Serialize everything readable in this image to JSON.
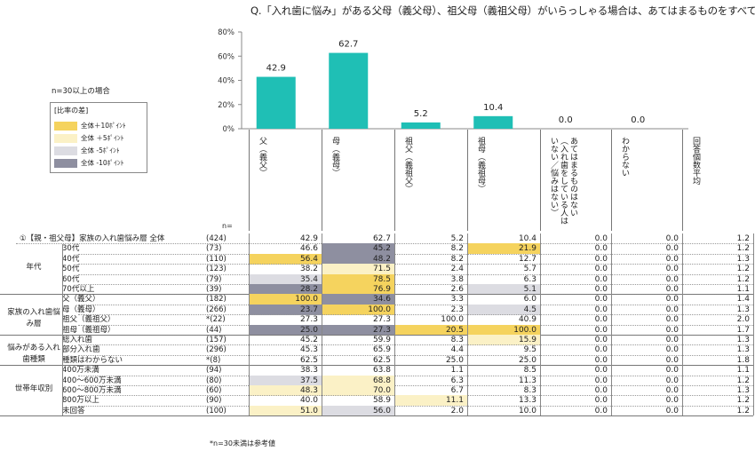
{
  "title": "Q.「入れ歯に悩み」がある父母（義父母）、祖父母（義祖父母）がいらっしゃる場合は、あてはまるものをすべてお",
  "note_top": "n=30以上の場合",
  "legend": {
    "title": "[比率の差]",
    "items": [
      {
        "label": "全体＋10ﾎﾟｲﾝﾄ",
        "color": "#F5D35E"
      },
      {
        "label": "全体 ＋5ﾎﾟｲﾝﾄ",
        "color": "#FBF1C6"
      },
      {
        "label": "全体 -5ﾎﾟｲﾝﾄ",
        "color": "#DCDCE2"
      },
      {
        "label": "全体 -10ﾎﾟｲﾝﾄ",
        "color": "#8E8FA0"
      }
    ]
  },
  "chart_data": {
    "type": "bar",
    "categories": [
      "父（義父）",
      "母（義母）",
      "祖父（義祖父）",
      "祖母（義祖母）",
      "あてはまるものはない（入れ歯をしている人はいない／悩みはない）",
      "わからない"
    ],
    "values": [
      42.9,
      62.7,
      5.2,
      10.4,
      0.0,
      0.0
    ],
    "value_labels": [
      "42.9",
      "62.7",
      "5.2",
      "10.4",
      "0.0",
      "0.0"
    ],
    "yticks": [
      "80%",
      "60%",
      "40%",
      "20%",
      "0%"
    ],
    "ylim": [
      0,
      80
    ],
    "color": "#1FBFB5",
    "grid": false
  },
  "columns": [
    "父（義父）",
    "母（義母）",
    "祖父（義祖父）",
    "祖母（義祖母）",
    "あてはまるものはない（入れ歯をしている人はいない／悩みはない）",
    "わからない",
    "回答個数平均"
  ],
  "n_header": "n=",
  "total_row": {
    "label": "①【親・祖父母】家族の入れ歯悩み層  全体",
    "n": "(424)",
    "values": [
      "42.9",
      "62.7",
      "5.2",
      "10.4",
      "0.0",
      "0.0",
      "1.2"
    ]
  },
  "groups": [
    {
      "label": "年代",
      "rows": [
        {
          "label": "30代",
          "n": "(73)",
          "values": [
            "46.6",
            "45.2",
            "8.2",
            "21.9",
            "0.0",
            "0.0",
            "1.2"
          ],
          "hl": [
            "",
            "d",
            "",
            "y",
            "",
            "",
            ""
          ]
        },
        {
          "label": "40代",
          "n": "(110)",
          "values": [
            "56.4",
            "48.2",
            "8.2",
            "12.7",
            "0.0",
            "0.0",
            "1.3"
          ],
          "hl": [
            "y",
            "d",
            "",
            "",
            "",
            "",
            ""
          ]
        },
        {
          "label": "50代",
          "n": "(123)",
          "values": [
            "38.2",
            "71.5",
            "2.4",
            "5.7",
            "0.0",
            "0.0",
            "1.2"
          ],
          "hl": [
            "",
            "l",
            "",
            "",
            "",
            "",
            ""
          ]
        },
        {
          "label": "60代",
          "n": "(79)",
          "values": [
            "35.4",
            "78.5",
            "3.8",
            "6.3",
            "0.0",
            "0.0",
            "1.2"
          ],
          "hl": [
            "g",
            "y",
            "",
            "",
            "",
            "",
            ""
          ]
        },
        {
          "label": "70代以上",
          "n": "(39)",
          "values": [
            "28.2",
            "76.9",
            "2.6",
            "5.1",
            "0.0",
            "0.0",
            "1.1"
          ],
          "hl": [
            "d",
            "y",
            "",
            "g",
            "",
            "",
            ""
          ]
        }
      ]
    },
    {
      "label": "家族の入れ歯悩み層",
      "rows": [
        {
          "label": "父（義父）",
          "n": "(182)",
          "values": [
            "100.0",
            "34.6",
            "3.3",
            "6.0",
            "0.0",
            "0.0",
            "1.4"
          ],
          "hl": [
            "y",
            "d",
            "",
            "",
            "",
            "",
            ""
          ]
        },
        {
          "label": "母（義母）",
          "n": "(266)",
          "values": [
            "23.7",
            "100.0",
            "2.3",
            "4.5",
            "0.0",
            "0.0",
            "1.3"
          ],
          "hl": [
            "d",
            "y",
            "",
            "g",
            "",
            "",
            ""
          ]
        },
        {
          "label": "祖父（義祖父）",
          "n": "*(22)",
          "values": [
            "27.3",
            "27.3",
            "100.0",
            "40.9",
            "0.0",
            "0.0",
            "2.0"
          ],
          "hl": [
            "",
            "",
            "",
            "",
            "",
            "",
            ""
          ]
        },
        {
          "label": "祖母（義祖母）",
          "n": "(44)",
          "values": [
            "25.0",
            "27.3",
            "20.5",
            "100.0",
            "0.0",
            "0.0",
            "1.7"
          ],
          "hl": [
            "d",
            "d",
            "y",
            "y",
            "",
            "",
            ""
          ]
        }
      ]
    },
    {
      "label": "悩みがある入れ歯種類",
      "rows": [
        {
          "label": "総入れ歯",
          "n": "(157)",
          "values": [
            "45.2",
            "59.9",
            "8.3",
            "15.9",
            "0.0",
            "0.0",
            "1.3"
          ],
          "hl": [
            "",
            "",
            "",
            "l",
            "",
            "",
            ""
          ]
        },
        {
          "label": "部分入れ歯",
          "n": "(296)",
          "values": [
            "45.3",
            "65.9",
            "4.4",
            "9.5",
            "0.0",
            "0.0",
            "1.3"
          ],
          "hl": [
            "",
            "",
            "",
            "",
            "",
            "",
            ""
          ]
        },
        {
          "label": "種類はわからない",
          "n": "*(8)",
          "values": [
            "62.5",
            "62.5",
            "25.0",
            "25.0",
            "0.0",
            "0.0",
            "1.8"
          ],
          "hl": [
            "",
            "",
            "",
            "",
            "",
            "",
            ""
          ]
        }
      ]
    },
    {
      "label": "世帯年収別",
      "rows": [
        {
          "label": "400万未満",
          "n": "(94)",
          "values": [
            "38.3",
            "63.8",
            "1.1",
            "8.5",
            "0.0",
            "0.0",
            "1.1"
          ],
          "hl": [
            "",
            "",
            "",
            "",
            "",
            "",
            ""
          ]
        },
        {
          "label": "400～600万未満",
          "n": "(80)",
          "values": [
            "37.5",
            "68.8",
            "6.3",
            "11.3",
            "0.0",
            "0.0",
            "1.2"
          ],
          "hl": [
            "g",
            "l",
            "",
            "",
            "",
            "",
            ""
          ]
        },
        {
          "label": "600～800万未満",
          "n": "(60)",
          "values": [
            "48.3",
            "70.0",
            "6.7",
            "8.3",
            "0.0",
            "0.0",
            "1.3"
          ],
          "hl": [
            "l",
            "l",
            "",
            "",
            "",
            "",
            ""
          ]
        },
        {
          "label": "800万以上",
          "n": "(90)",
          "values": [
            "40.0",
            "58.9",
            "11.1",
            "13.3",
            "0.0",
            "0.0",
            "1.2"
          ],
          "hl": [
            "",
            "",
            "l",
            "",
            "",
            "",
            ""
          ]
        },
        {
          "label": "未回答",
          "n": "(100)",
          "values": [
            "51.0",
            "56.0",
            "2.0",
            "10.0",
            "0.0",
            "0.0",
            "1.2"
          ],
          "hl": [
            "l",
            "g",
            "",
            "",
            "",
            "",
            ""
          ]
        }
      ]
    }
  ],
  "footnote": "*n=30未満は参考値"
}
